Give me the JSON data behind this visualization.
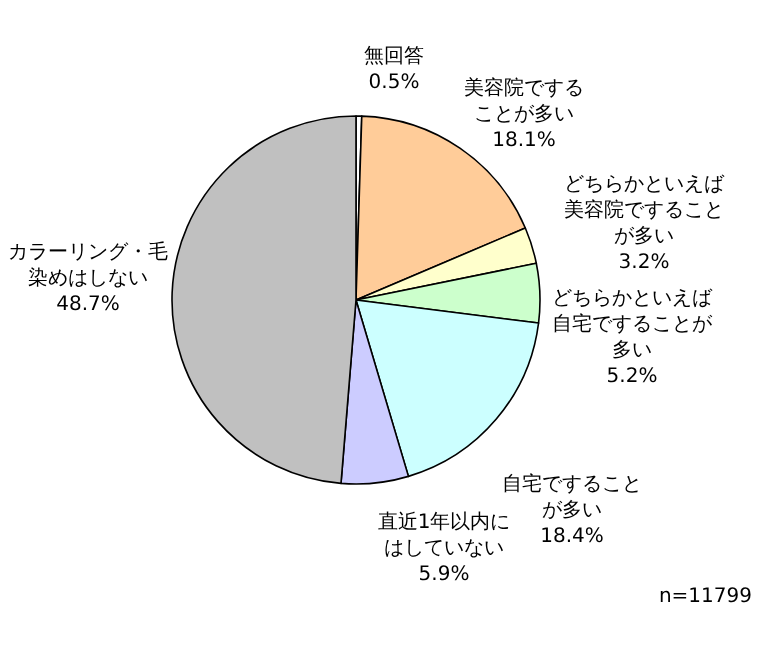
{
  "chart_data": {
    "type": "pie",
    "categories": [
      "無回答",
      "美容院ですることが多い",
      "どちらかといえば美容院ですることが多い",
      "どちらかといえば自宅ですることが多い",
      "自宅ですることが多い",
      "直近1年以内にはしていない",
      "カラーリング・毛染めはしない"
    ],
    "values": [
      0.5,
      18.1,
      3.2,
      5.2,
      18.4,
      5.9,
      48.7
    ],
    "colors": [
      "#ffffff",
      "#ffcc99",
      "#ffffcc",
      "#ccffcc",
      "#ccffff",
      "#ccccff",
      "#c0c0c0"
    ],
    "value_labels": [
      "0.5%",
      "18.1%",
      "3.2%",
      "5.2%",
      "18.4%",
      "5.9%",
      "48.7%"
    ],
    "annotations": [
      "n=11799"
    ]
  }
}
